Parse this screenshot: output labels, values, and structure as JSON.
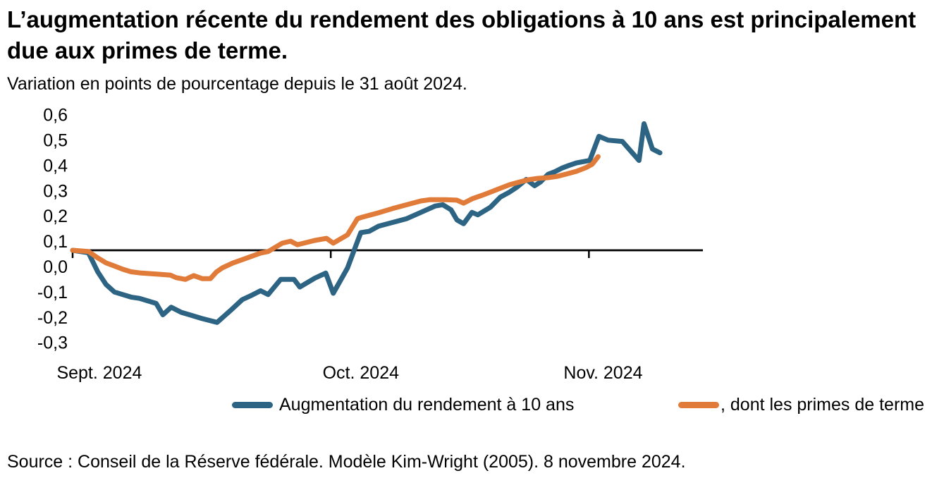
{
  "chart_data": {
    "type": "line",
    "title": "L’augmentation récente du rendement des obligations à 10 ans est principalement due aux primes de terme.",
    "subtitle": "Variation en points de pourcentage depuis le 31 août 2024.",
    "source": "Source : Conseil de la Réserve fédérale. Modèle Kim-Wright (2005). 8 novembre 2024.",
    "x_definition": "jours depuis le 30 août 2024",
    "xlim": [
      0,
      75
    ],
    "ylim": [
      -0.3,
      0.6
    ],
    "baseline": 0,
    "grid": false,
    "legend_position": "bottom",
    "axis_color": "#000000",
    "y_ticks": [
      {
        "v": 0.6,
        "label": "0,6"
      },
      {
        "v": 0.5,
        "label": "0,5"
      },
      {
        "v": 0.4,
        "label": "0,4"
      },
      {
        "v": 0.3,
        "label": "0,3"
      },
      {
        "v": 0.2,
        "label": "0,2"
      },
      {
        "v": 0.1,
        "label": "0,1"
      },
      {
        "v": 0.0,
        "label": "0,0"
      },
      {
        "v": -0.1,
        "label": "-0,1"
      },
      {
        "v": -0.2,
        "label": "-0,2"
      },
      {
        "v": -0.3,
        "label": "-0,3"
      }
    ],
    "x_ticks": [
      {
        "d": 0,
        "label_d": 3.2,
        "label": "Sept. 2024"
      },
      {
        "d": 30.9,
        "label_d": 34.5,
        "label": "Oct. 2024"
      },
      {
        "d": 61.8,
        "label_d": 63.5,
        "label": "Nov. 2024"
      }
    ],
    "series": [
      {
        "name": "Augmentation du rendement à 10 ans",
        "color": "#2d6484",
        "points": [
          [
            0,
            0
          ],
          [
            1.9,
            -0.01
          ],
          [
            3,
            -0.085
          ],
          [
            4,
            -0.135
          ],
          [
            5,
            -0.165
          ],
          [
            6,
            -0.175
          ],
          [
            7,
            -0.185
          ],
          [
            8,
            -0.19
          ],
          [
            10,
            -0.21
          ],
          [
            10.8,
            -0.255
          ],
          [
            11.8,
            -0.225
          ],
          [
            13,
            -0.245
          ],
          [
            14,
            -0.255
          ],
          [
            15.5,
            -0.27
          ],
          [
            17.3,
            -0.285
          ],
          [
            19,
            -0.235
          ],
          [
            20.3,
            -0.195
          ],
          [
            21.3,
            -0.18
          ],
          [
            22.5,
            -0.16
          ],
          [
            23.4,
            -0.175
          ],
          [
            24.9,
            -0.115
          ],
          [
            26.5,
            -0.115
          ],
          [
            27.2,
            -0.145
          ],
          [
            29,
            -0.11
          ],
          [
            30.3,
            -0.09
          ],
          [
            31.2,
            -0.17
          ],
          [
            32.9,
            -0.07
          ],
          [
            33.7,
            0
          ],
          [
            34.5,
            0.07
          ],
          [
            35.5,
            0.075
          ],
          [
            36.6,
            0.095
          ],
          [
            38.3,
            0.11
          ],
          [
            40,
            0.125
          ],
          [
            41.7,
            0.15
          ],
          [
            43.4,
            0.175
          ],
          [
            44.3,
            0.18
          ],
          [
            45.3,
            0.16
          ],
          [
            46,
            0.12
          ],
          [
            46.8,
            0.105
          ],
          [
            47.8,
            0.15
          ],
          [
            48.5,
            0.14
          ],
          [
            50,
            0.17
          ],
          [
            51.2,
            0.21
          ],
          [
            52.3,
            0.23
          ],
          [
            53.2,
            0.25
          ],
          [
            54.3,
            0.28
          ],
          [
            55.3,
            0.255
          ],
          [
            56,
            0.27
          ],
          [
            56.9,
            0.3
          ],
          [
            57.7,
            0.31
          ],
          [
            58.6,
            0.325
          ],
          [
            59.4,
            0.335
          ],
          [
            60.3,
            0.345
          ],
          [
            61.9,
            0.355
          ],
          [
            63,
            0.45
          ],
          [
            64.1,
            0.435
          ],
          [
            65.8,
            0.43
          ],
          [
            67.8,
            0.355
          ],
          [
            68.4,
            0.5
          ],
          [
            69.4,
            0.4
          ],
          [
            70.3,
            0.385
          ]
        ]
      },
      {
        "name": "dont les primes de terme",
        "color": "#e07b39",
        "points": [
          [
            0,
            0
          ],
          [
            1.9,
            -0.005
          ],
          [
            3,
            -0.03
          ],
          [
            4,
            -0.05
          ],
          [
            5,
            -0.062
          ],
          [
            6,
            -0.075
          ],
          [
            7,
            -0.085
          ],
          [
            8.2,
            -0.09
          ],
          [
            10.5,
            -0.095
          ],
          [
            11.7,
            -0.098
          ],
          [
            12.4,
            -0.108
          ],
          [
            13.5,
            -0.115
          ],
          [
            14.5,
            -0.1
          ],
          [
            15.5,
            -0.112
          ],
          [
            16.5,
            -0.112
          ],
          [
            17.2,
            -0.086
          ],
          [
            17.9,
            -0.07
          ],
          [
            19.2,
            -0.05
          ],
          [
            20.4,
            -0.036
          ],
          [
            22.5,
            -0.011
          ],
          [
            23.4,
            -0.005
          ],
          [
            25.1,
            0.028
          ],
          [
            26.1,
            0.036
          ],
          [
            26.9,
            0.022
          ],
          [
            29,
            0.039
          ],
          [
            30.4,
            0.047
          ],
          [
            31.2,
            0.028
          ],
          [
            32.9,
            0.061
          ],
          [
            34.1,
            0.125
          ],
          [
            34.6,
            0.13
          ],
          [
            36.6,
            0.148
          ],
          [
            38.3,
            0.165
          ],
          [
            40,
            0.18
          ],
          [
            41.7,
            0.195
          ],
          [
            42.8,
            0.2
          ],
          [
            44.5,
            0.2
          ],
          [
            46,
            0.198
          ],
          [
            46.8,
            0.186
          ],
          [
            47.8,
            0.203
          ],
          [
            49,
            0.217
          ],
          [
            50.1,
            0.231
          ],
          [
            51.2,
            0.245
          ],
          [
            52.3,
            0.259
          ],
          [
            53.5,
            0.27
          ],
          [
            54.6,
            0.279
          ],
          [
            55.7,
            0.284
          ],
          [
            56.9,
            0.287
          ],
          [
            58,
            0.292
          ],
          [
            59.1,
            0.301
          ],
          [
            60.3,
            0.312
          ],
          [
            61.4,
            0.326
          ],
          [
            62.2,
            0.34
          ],
          [
            62.9,
            0.37
          ]
        ]
      }
    ]
  },
  "legend_display": [
    {
      "label": "Augmentation du rendement à 10 ans"
    },
    {
      "label": ", dont les primes de terme"
    }
  ]
}
